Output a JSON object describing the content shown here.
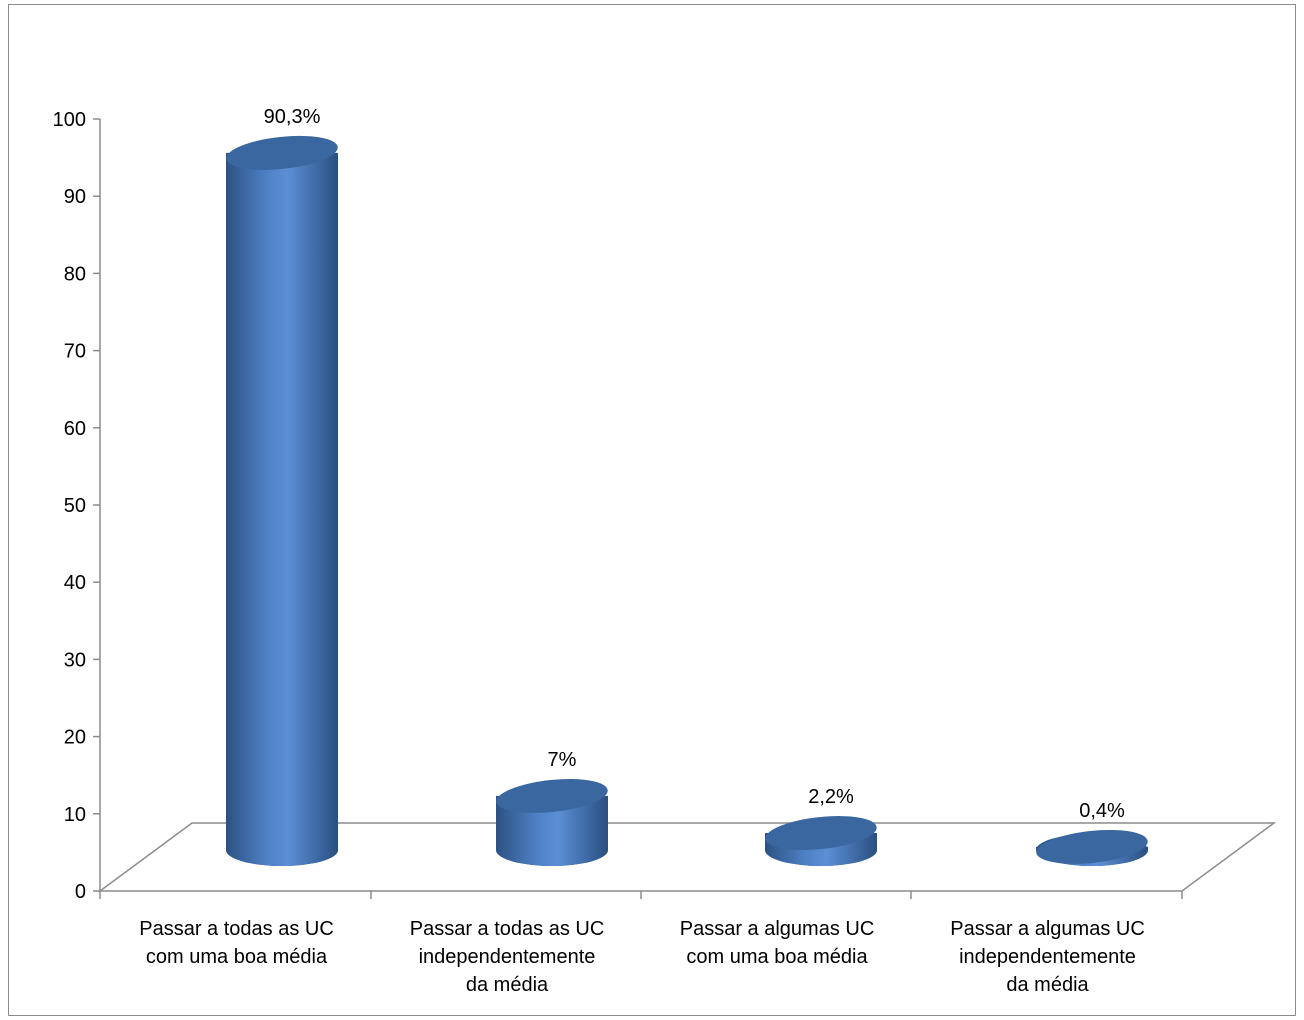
{
  "chart_data": {
    "type": "bar",
    "style": "3d-cylinder",
    "categories": [
      [
        "Passar a todas as UC",
        "com uma boa média"
      ],
      [
        "Passar a todas as UC",
        "independentemente",
        "da média"
      ],
      [
        "Passar a algumas UC",
        "com uma boa média"
      ],
      [
        "Passar a algumas UC",
        "independentemente",
        "da média"
      ]
    ],
    "values": [
      90.3,
      7,
      2.2,
      0.4
    ],
    "data_labels": [
      "90,3%",
      "7%",
      "2,2%",
      "0,4%"
    ],
    "title": "",
    "xlabel": "",
    "ylabel": "",
    "ylim": [
      0,
      100
    ],
    "yticks": [
      0,
      10,
      20,
      30,
      40,
      50,
      60,
      70,
      80,
      90,
      100
    ],
    "grid": false,
    "legend": "none",
    "colors": {
      "bar_side_dark": "#2c5183",
      "bar_side_light": "#5b8fd6",
      "bar_top": "#3a679f",
      "bar_bottom": "#2e5990",
      "axis": "#8c8c8c"
    }
  }
}
